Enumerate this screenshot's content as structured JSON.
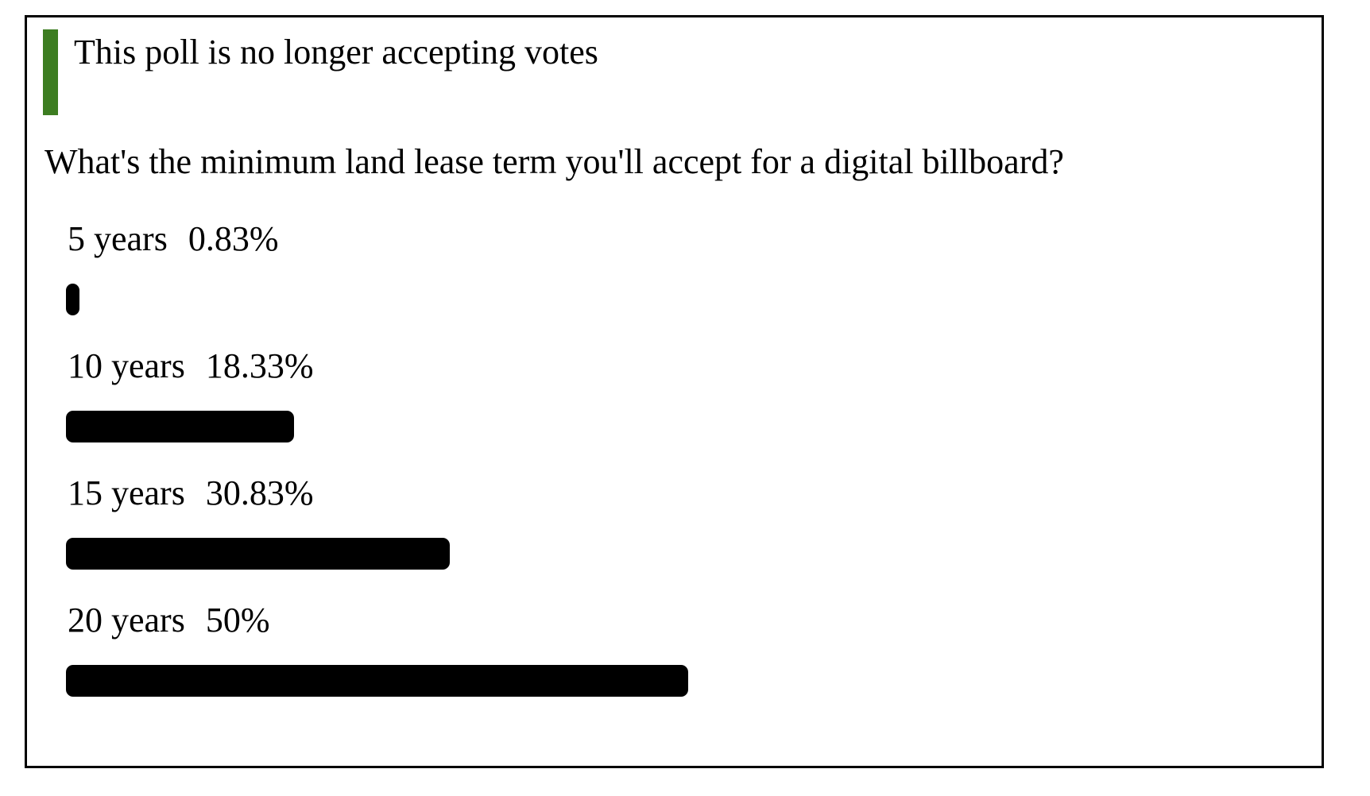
{
  "poll": {
    "status_notice": "This poll is no longer accepting votes",
    "question": "What's the minimum land lease term you'll accept for a digital billboard?",
    "options": [
      {
        "label": "5 years",
        "percent_label": "0.83%",
        "percent": 0.83
      },
      {
        "label": "10 years",
        "percent_label": "18.33%",
        "percent": 18.33
      },
      {
        "label": "15 years",
        "percent_label": "30.83%",
        "percent": 30.83
      },
      {
        "label": "20 years",
        "percent_label": "50%",
        "percent": 50
      }
    ]
  },
  "chart_data": {
    "type": "bar",
    "orientation": "horizontal",
    "title": "What's the minimum land lease term you'll accept for a digital billboard?",
    "categories": [
      "5 years",
      "10 years",
      "15 years",
      "20 years"
    ],
    "values": [
      0.83,
      18.33,
      30.83,
      50
    ],
    "value_labels": [
      "0.83%",
      "18.33%",
      "30.83%",
      "50%"
    ],
    "xlabel": "",
    "ylabel": "",
    "xlim": [
      0,
      100
    ],
    "grid": false,
    "legend": false,
    "bar_color": "#000000"
  },
  "colors": {
    "accent_green": "#3d7d21",
    "bar": "#000000",
    "border": "#000000",
    "text": "#000000",
    "background": "#ffffff"
  }
}
